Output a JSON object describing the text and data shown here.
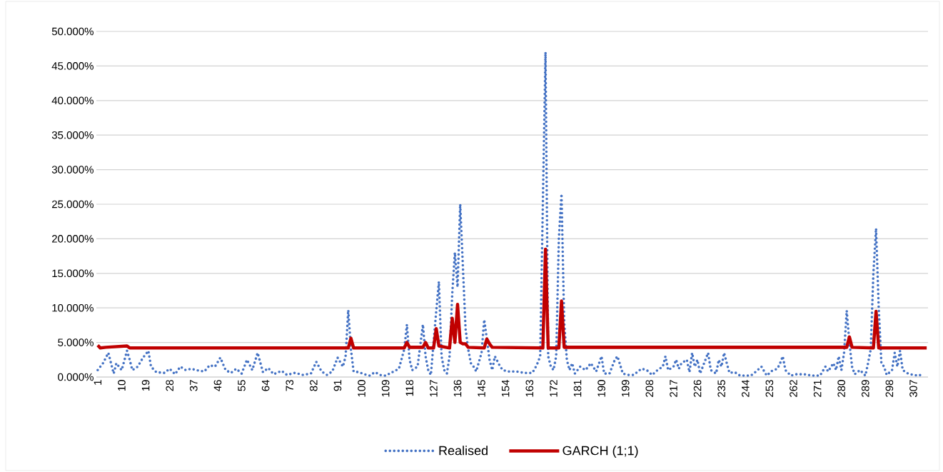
{
  "chart_data": {
    "type": "line",
    "xlim": [
      0.5,
      312.5
    ],
    "xticks": [
      1,
      10,
      19,
      28,
      37,
      46,
      55,
      64,
      73,
      82,
      91,
      100,
      109,
      118,
      127,
      136,
      145,
      154,
      163,
      172,
      181,
      190,
      199,
      208,
      217,
      226,
      235,
      244,
      253,
      262,
      271,
      280,
      289,
      298,
      307
    ],
    "ylim": [
      0,
      50
    ],
    "yticks": [
      {
        "value": 0,
        "label": "0.000%"
      },
      {
        "value": 5,
        "label": "5.000%"
      },
      {
        "value": 10,
        "label": "10.000%"
      },
      {
        "value": 15,
        "label": "15.000%"
      },
      {
        "value": 20,
        "label": "20.000%"
      },
      {
        "value": 25,
        "label": "25.000%"
      },
      {
        "value": 30,
        "label": "30.000%"
      },
      {
        "value": 35,
        "label": "35.000%"
      },
      {
        "value": 40,
        "label": "40.000%"
      },
      {
        "value": 45,
        "label": "45.000%"
      },
      {
        "value": 50,
        "label": "50.000%"
      }
    ],
    "grid": "y",
    "legend": "bottom",
    "marker": "none",
    "series": [
      {
        "name": "Realised",
        "color": "#4472c4",
        "line_style": "dotted",
        "x": [
          1,
          3,
          5,
          7,
          8,
          10,
          12,
          13,
          14,
          16,
          18,
          20,
          21,
          23,
          26,
          28,
          30,
          32,
          34,
          36,
          38,
          41,
          43,
          45,
          47,
          49,
          51,
          53,
          55,
          57,
          59,
          61,
          63,
          65,
          67,
          70,
          72,
          75,
          78,
          81,
          83,
          85,
          87,
          89,
          91,
          93,
          94,
          95,
          96,
          97,
          99,
          101,
          103,
          105,
          107,
          109,
          112,
          114,
          116,
          117,
          118,
          119,
          121,
          123,
          124,
          125,
          126,
          127,
          128,
          129,
          130,
          131,
          132,
          133,
          134,
          135,
          136,
          137,
          138,
          139,
          140,
          141,
          142,
          143,
          145,
          146,
          147,
          148,
          149,
          150,
          152,
          153,
          155,
          158,
          161,
          164,
          165,
          166,
          167,
          168,
          169,
          170,
          171,
          172,
          173,
          174,
          175,
          176,
          177,
          178,
          179,
          180,
          182,
          184,
          186,
          188,
          190,
          191,
          193,
          195,
          196,
          198,
          200,
          202,
          205,
          207,
          209,
          211,
          213,
          214,
          215,
          217,
          218,
          219,
          220,
          222,
          223,
          224,
          225,
          226,
          227,
          228,
          230,
          231,
          233,
          234,
          235,
          236,
          237,
          238,
          240,
          242,
          244,
          246,
          248,
          250,
          252,
          254,
          256,
          257,
          258,
          259,
          261,
          263,
          266,
          269,
          272,
          274,
          275,
          277,
          278,
          279,
          280,
          281,
          282,
          283,
          284,
          285,
          287,
          289,
          290,
          291,
          292,
          293,
          294,
          295,
          296,
          297,
          299,
          300,
          301,
          302,
          303,
          305,
          307,
          309,
          311
        ],
        "values": [
          1.0,
          2.0,
          3.5,
          0.5,
          2.0,
          1.0,
          3.8,
          2.5,
          1.0,
          1.5,
          2.8,
          3.8,
          1.5,
          0.7,
          0.6,
          1.2,
          0.4,
          1.5,
          1.0,
          1.2,
          1.0,
          0.8,
          1.7,
          1.5,
          2.8,
          1.0,
          0.6,
          1.2,
          0.5,
          2.5,
          1.0,
          3.5,
          0.7,
          1.3,
          0.4,
          0.9,
          0.3,
          0.6,
          0.3,
          0.5,
          2.2,
          0.8,
          0.3,
          0.8,
          2.8,
          1.5,
          3.0,
          9.7,
          4.0,
          0.8,
          0.7,
          0.4,
          0.2,
          0.7,
          0.3,
          0.2,
          0.8,
          1.2,
          4.0,
          7.6,
          2.5,
          1.0,
          1.5,
          7.6,
          3.0,
          1.0,
          0.3,
          5.0,
          9.5,
          13.8,
          3.0,
          1.0,
          0.5,
          3.0,
          12.0,
          18.0,
          13.0,
          25.0,
          16.0,
          7.0,
          4.0,
          2.0,
          1.5,
          0.8,
          3.5,
          8.3,
          5.5,
          2.5,
          1.0,
          3.0,
          1.5,
          1.0,
          0.8,
          0.8,
          0.6,
          0.6,
          1.2,
          2.0,
          3.0,
          25.0,
          47.0,
          3.0,
          1.5,
          1.0,
          3.0,
          20.0,
          26.5,
          8.0,
          2.5,
          1.0,
          2.0,
          0.5,
          1.5,
          1.0,
          2.0,
          0.8,
          3.0,
          0.5,
          0.5,
          2.5,
          3.0,
          0.5,
          0.3,
          0.3,
          1.2,
          1.0,
          0.3,
          1.0,
          1.5,
          3.0,
          1.0,
          1.5,
          2.5,
          1.2,
          2.0,
          2.5,
          0.7,
          3.5,
          1.5,
          2.5,
          0.5,
          1.5,
          3.5,
          1.0,
          0.5,
          2.5,
          1.5,
          3.5,
          2.0,
          0.6,
          0.7,
          0.2,
          0.2,
          0.2,
          0.8,
          1.5,
          0.2,
          0.9,
          1.2,
          2.0,
          3.0,
          1.0,
          0.2,
          0.4,
          0.4,
          0.2,
          0.2,
          1.5,
          0.8,
          2.0,
          1.0,
          3.0,
          1.0,
          3.5,
          9.6,
          5.0,
          1.5,
          0.4,
          1.0,
          0.2,
          2.0,
          4.0,
          15.0,
          21.5,
          10.0,
          2.0,
          1.5,
          0.3,
          1.0,
          3.5,
          1.5,
          3.8,
          1.0,
          0.5,
          0.3,
          0.2,
          0.5
        ]
      },
      {
        "name": "GARCH (1;1)",
        "color": "#c00000",
        "line_style": "solid",
        "x": [
          1,
          2,
          4,
          12,
          13,
          95,
          96,
          97,
          116,
          117,
          118,
          123,
          124,
          125,
          127,
          128,
          129,
          133,
          134,
          135,
          136,
          137,
          138,
          139,
          140,
          146,
          147,
          148,
          149,
          168,
          169,
          170,
          174,
          175,
          176,
          282,
          283,
          284,
          292,
          293,
          294,
          312
        ],
        "values": [
          4.6,
          4.2,
          4.3,
          4.5,
          4.2,
          4.2,
          5.6,
          4.2,
          4.2,
          5.0,
          4.3,
          4.3,
          5.0,
          4.2,
          4.2,
          7.0,
          4.5,
          4.2,
          8.5,
          5.0,
          10.5,
          5.0,
          4.8,
          4.8,
          4.3,
          4.2,
          5.5,
          4.8,
          4.3,
          4.2,
          18.5,
          4.2,
          4.2,
          11.0,
          4.3,
          4.3,
          5.8,
          4.3,
          4.2,
          9.5,
          4.2,
          4.2
        ]
      }
    ]
  }
}
